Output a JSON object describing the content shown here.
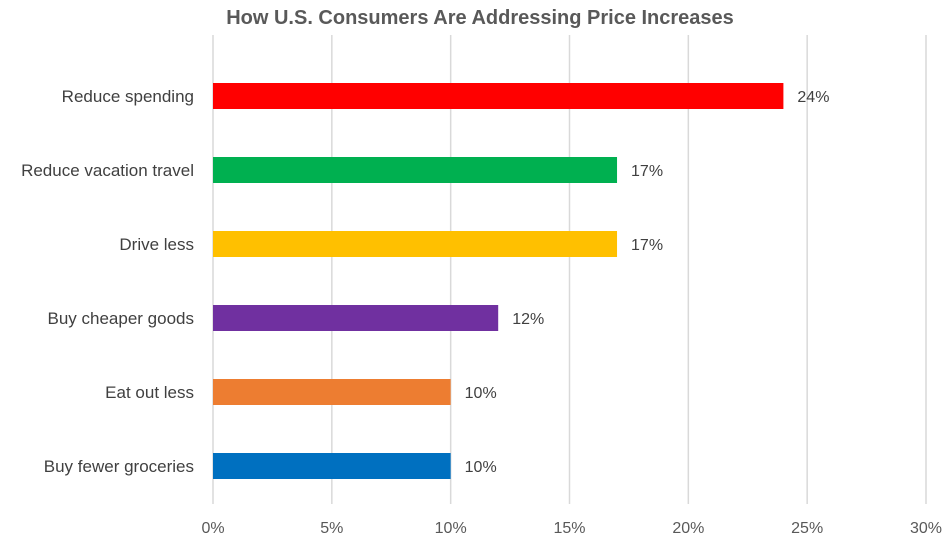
{
  "chart_data": {
    "type": "bar",
    "orientation": "horizontal",
    "title": "How U.S. Consumers Are Addressing Price Increases",
    "categories": [
      "Reduce spending",
      "Reduce vacation travel",
      "Drive less",
      "Buy cheaper goods",
      "Eat out less",
      "Buy fewer groceries"
    ],
    "values": [
      24,
      17,
      17,
      12,
      10,
      10
    ],
    "data_labels": [
      "24%",
      "17%",
      "17%",
      "12%",
      "10%",
      "10%"
    ],
    "colors": [
      "#FF0000",
      "#00B050",
      "#FFC000",
      "#7030A0",
      "#ED7D31",
      "#0070C0"
    ],
    "xlim": [
      0,
      30
    ],
    "xticks": [
      0,
      5,
      10,
      15,
      20,
      25,
      30
    ],
    "xtick_labels": [
      "0%",
      "5%",
      "10%",
      "15%",
      "20%",
      "25%",
      "30%"
    ],
    "xlabel": "",
    "ylabel": "",
    "grid": true,
    "legend": "none"
  }
}
